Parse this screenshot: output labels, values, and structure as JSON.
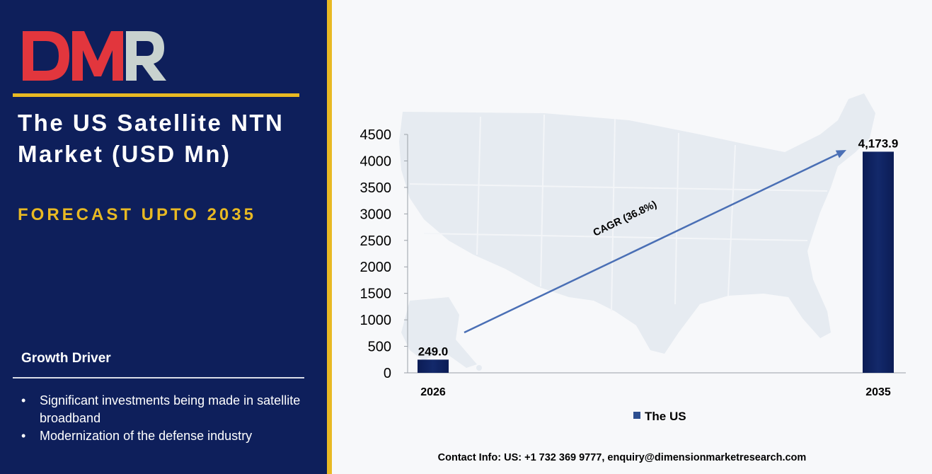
{
  "brand": {
    "logo_text": "DMR",
    "colors": {
      "red": "#e2363d",
      "gray": "#c8d2cf",
      "navy": "#0e1f5b",
      "gold": "#e8b923",
      "bar": "#13296b",
      "arrow": "#4a6fb5"
    }
  },
  "panel": {
    "title": "The US Satellite NTN Market (USD Mn)",
    "subtitle": "FORECAST UPTO 2035",
    "growth_driver_title": "Growth Driver",
    "drivers": [
      "Significant investments being made in satellite broadband",
      "Modernization of the defense industry"
    ]
  },
  "chart_data": {
    "type": "bar",
    "categories": [
      "2026",
      "2035"
    ],
    "series": [
      {
        "name": "The US",
        "values": [
          249.0,
          4173.9
        ]
      }
    ],
    "data_labels": [
      "249.0",
      "4,173.9"
    ],
    "yticks": [
      0,
      500,
      1000,
      1500,
      2000,
      2500,
      3000,
      3500,
      4000,
      4500
    ],
    "ylim": [
      0,
      4500
    ],
    "annotation": "CAGR (36.8%)",
    "legend": "bottom-center",
    "grid": false
  },
  "footer": {
    "contact": "Contact Info: US: +1 732 369 9777, enquiry@dimensionmarketresearch.com"
  }
}
